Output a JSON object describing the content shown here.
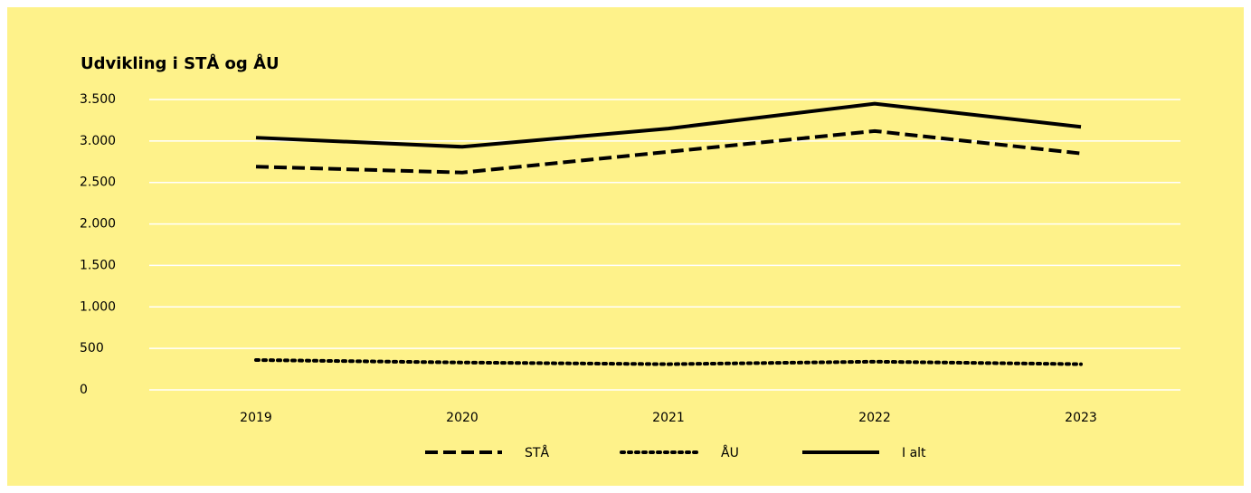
{
  "chart_data": {
    "type": "line",
    "title": "Udvikling i STÅ og ÅU",
    "categories": [
      "2019",
      "2020",
      "2021",
      "2022",
      "2023"
    ],
    "series": [
      {
        "name": "STÅ",
        "color": "#000000",
        "style": "dashed",
        "values": [
          2690,
          2620,
          2870,
          3120,
          2850
        ]
      },
      {
        "name": "ÅU",
        "color": "#000000",
        "style": "dotted",
        "values": [
          360,
          330,
          310,
          340,
          310
        ]
      },
      {
        "name": "I alt",
        "color": "#000000",
        "style": "solid",
        "values": [
          3040,
          2930,
          3150,
          3450,
          3170
        ]
      }
    ],
    "ylim": [
      0,
      3500
    ],
    "yticks": [
      0,
      500,
      {
        "value": 1000,
        "label": "1.000"
      },
      {
        "value": 1500,
        "label": "1.500"
      },
      {
        "value": 2000,
        "label": "2.000"
      },
      {
        "value": 2500,
        "label": "2.500"
      },
      {
        "value": 3000,
        "label": "3.000"
      },
      {
        "value": 3500,
        "label": "3.500"
      }
    ],
    "grid": true,
    "grid_color": "#ffffff",
    "background": "#fef28a",
    "legend": "bottom"
  }
}
